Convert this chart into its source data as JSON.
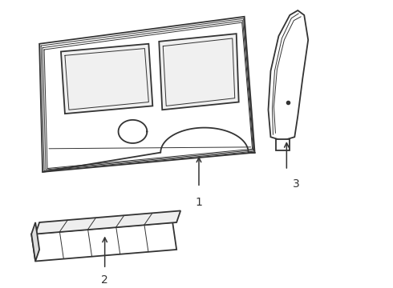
{
  "bg_color": "#ffffff",
  "line_color": "#333333",
  "lw_main": 1.3,
  "lw_inner": 0.7,
  "fig_w": 4.9,
  "fig_h": 3.6,
  "dpi": 100
}
